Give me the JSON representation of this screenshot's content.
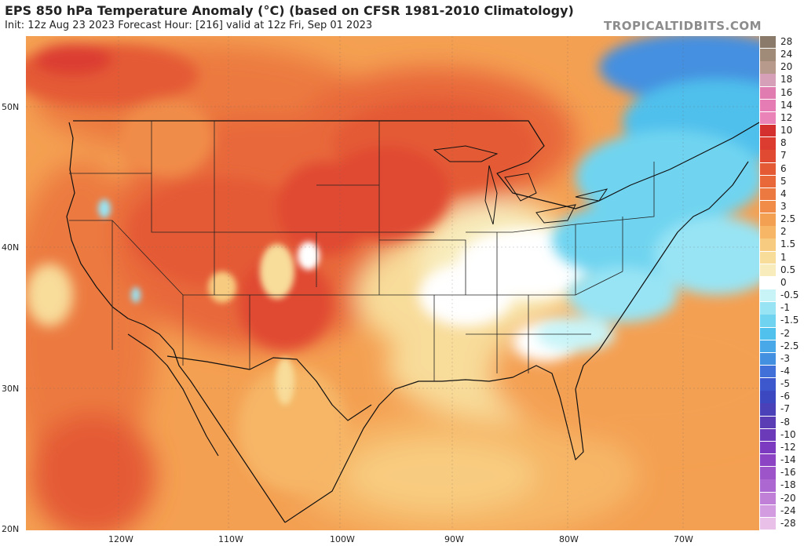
{
  "header": {
    "title": "EPS 850 hPa Temperature Anomaly (°C) (based on CFSR 1981-2010 Climatology)",
    "subtitle": "Init: 12z Aug 23 2023   Forecast Hour: [216]   valid at 12z Fri, Sep 01 2023",
    "brand": "TROPICALTIDBITS.COM"
  },
  "axes": {
    "latitudes": [
      "50N",
      "40N",
      "30N",
      "20N"
    ],
    "longitudes": [
      "120W",
      "110W",
      "100W",
      "90W",
      "80W",
      "70W"
    ]
  },
  "legend": {
    "labels": [
      "28",
      "24",
      "20",
      "18",
      "16",
      "14",
      "12",
      "10",
      "8",
      "7",
      "6",
      "5",
      "4",
      "3",
      "2.5",
      "2",
      "1.5",
      "1",
      "0.5",
      "0",
      "-0.5",
      "-1",
      "-1.5",
      "-2",
      "-2.5",
      "-3",
      "-4",
      "-5",
      "-6",
      "-7",
      "-8",
      "-10",
      "-12",
      "-14",
      "-16",
      "-18",
      "-20",
      "-24",
      "-28"
    ],
    "colors": [
      "#8a7a6a",
      "#a08a78",
      "#b89a8c",
      "#d6a0b8",
      "#e07cb0",
      "#e67cb4",
      "#ea84b8",
      "#d43030",
      "#dc3c30",
      "#e04a32",
      "#e45a34",
      "#e8683a",
      "#ec7a40",
      "#f08c48",
      "#f4a052",
      "#f6b666",
      "#f8cc80",
      "#f8dc9a",
      "#f8ecbc",
      "#ffffff",
      "#c8f4f8",
      "#98e4f4",
      "#70d4f0",
      "#50c0ec",
      "#48a8e8",
      "#4490e0",
      "#4070d8",
      "#3c58cc",
      "#3c48c0",
      "#4a40b8",
      "#5a3cb4",
      "#6a3ab8",
      "#7c3ac0",
      "#8c44c4",
      "#9c54c8",
      "#ac68d0",
      "#c080d8",
      "#d49ce0",
      "#e8c0e8"
    ]
  }
}
